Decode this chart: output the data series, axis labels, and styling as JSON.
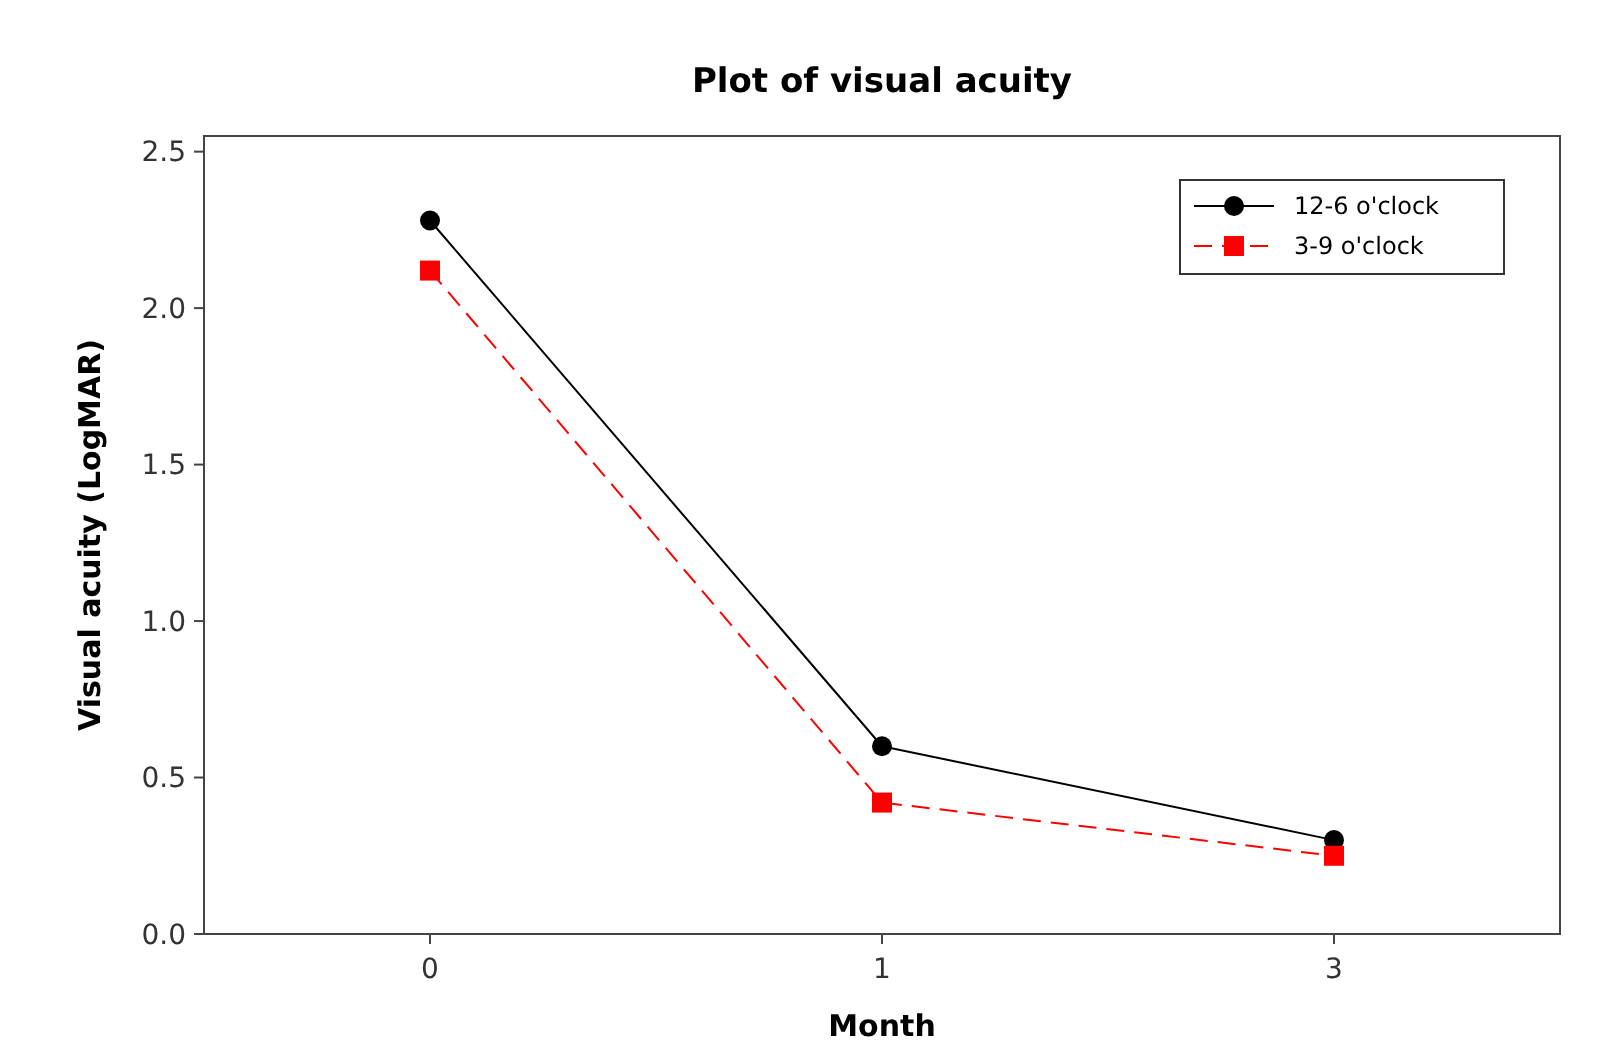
{
  "chart_data": {
    "type": "line",
    "title": "Plot of visual acuity",
    "xlabel": "Month",
    "ylabel": "Visual acuity  (LogMAR)",
    "categories": [
      "0",
      "1",
      "3"
    ],
    "series": [
      {
        "name": "12-6 o'clock",
        "color": "#000000",
        "values": [
          2.28,
          0.6,
          0.3
        ],
        "marker": "circle",
        "line_style": "solid"
      },
      {
        "name": "3-9 o'clock",
        "color": "#ff0000",
        "values": [
          2.12,
          0.42,
          0.25
        ],
        "marker": "square",
        "line_style": "dashed"
      }
    ],
    "ylim": [
      0,
      2.55
    ],
    "yticks": [
      {
        "value": 0,
        "label": "0.0"
      },
      {
        "value": 0.5,
        "label": "0.5"
      },
      {
        "value": 1,
        "label": "1.0"
      },
      {
        "value": 1.5,
        "label": "1.5"
      },
      {
        "value": 2,
        "label": "2.0"
      },
      {
        "value": 2.5,
        "label": "2.5"
      }
    ],
    "grid": false,
    "legend": "top right"
  }
}
